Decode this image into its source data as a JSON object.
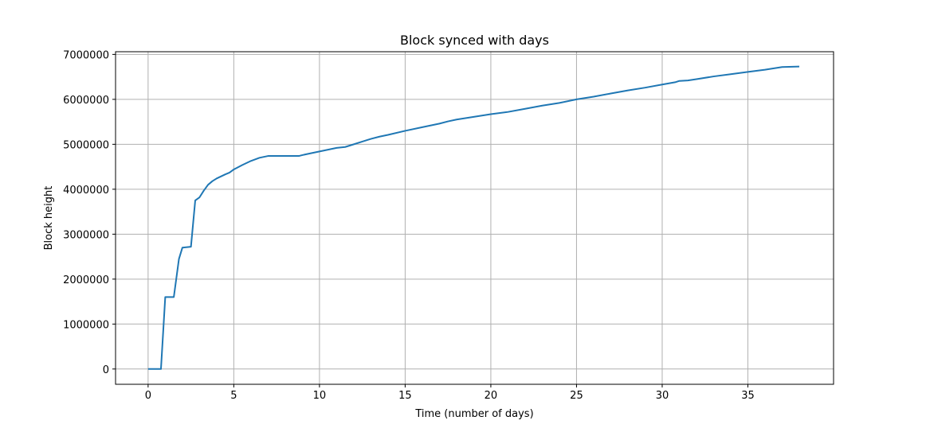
{
  "chart_data": {
    "type": "line",
    "title": "Block synced with days",
    "xlabel": "Time (number of days)",
    "ylabel": "Block height",
    "xlim": [
      -1.9,
      40.0
    ],
    "ylim": [
      -340000,
      7060000
    ],
    "xticks": [
      0,
      5,
      10,
      15,
      20,
      25,
      30,
      35
    ],
    "xtick_labels": [
      "0",
      "5",
      "10",
      "15",
      "20",
      "25",
      "30",
      "35"
    ],
    "yticks": [
      0,
      1000000,
      2000000,
      3000000,
      4000000,
      5000000,
      6000000,
      7000000
    ],
    "ytick_labels": [
      "0",
      "1000000",
      "2000000",
      "3000000",
      "4000000",
      "5000000",
      "6000000",
      "7000000"
    ],
    "grid": true,
    "line_color": "#1f77b4",
    "series": [
      {
        "x": [
          0,
          0.75,
          1.0,
          1.5,
          1.8,
          2.0,
          2.5,
          2.75,
          3.0,
          3.25,
          3.5,
          3.75,
          4.0,
          4.5,
          4.75,
          5.0,
          5.5,
          6.0,
          6.5,
          7.0,
          7.5,
          8.0,
          8.5,
          8.8,
          9.0,
          9.5,
          10.0,
          10.5,
          11.0,
          11.5,
          12.0,
          12.5,
          13.0,
          13.5,
          14.0,
          15.0,
          16.0,
          16.5,
          17.0,
          17.5,
          18.0,
          19.0,
          20.0,
          21.0,
          22.0,
          23.0,
          24.0,
          25.0,
          26.0,
          27.0,
          28.0,
          29.0,
          30.0,
          30.75,
          31.0,
          31.5,
          32.0,
          33.0,
          34.0,
          35.0,
          36.0,
          37.0,
          38.0
        ],
        "y": [
          0,
          0,
          1600000,
          1600000,
          2450000,
          2700000,
          2720000,
          3750000,
          3820000,
          3970000,
          4100000,
          4180000,
          4240000,
          4330000,
          4370000,
          4440000,
          4540000,
          4630000,
          4700000,
          4740000,
          4740000,
          4740000,
          4740000,
          4740000,
          4760000,
          4800000,
          4840000,
          4880000,
          4920000,
          4940000,
          5000000,
          5060000,
          5120000,
          5170000,
          5210000,
          5300000,
          5380000,
          5420000,
          5460000,
          5510000,
          5550000,
          5610000,
          5670000,
          5720000,
          5790000,
          5860000,
          5920000,
          6000000,
          6060000,
          6130000,
          6200000,
          6260000,
          6330000,
          6380000,
          6410000,
          6420000,
          6450000,
          6510000,
          6560000,
          6610000,
          6660000,
          6720000,
          6730000
        ]
      }
    ]
  }
}
